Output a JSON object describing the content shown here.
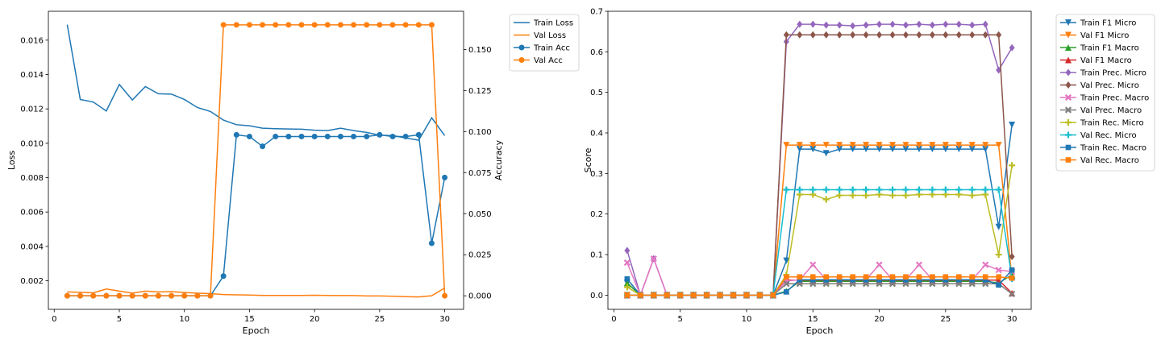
{
  "chart_data": [
    {
      "type": "line",
      "xlabel": "Epoch",
      "ylabel": "Loss",
      "y2label": "Accuracy",
      "xlim": [
        -0.45,
        31.45
      ],
      "ylim": [
        0.000339,
        0.01768
      ],
      "y2lim": [
        -0.00825,
        0.17325
      ],
      "x_ticks": [
        0,
        5,
        10,
        15,
        20,
        25,
        30
      ],
      "y_ticks": [
        0.002,
        0.004,
        0.006,
        0.008,
        0.01,
        0.012,
        0.014,
        0.016
      ],
      "y_tick_labels": [
        "0.002",
        "0.004",
        "0.006",
        "0.008",
        "0.010",
        "0.012",
        "0.014",
        "0.016"
      ],
      "y2_ticks": [
        0,
        0.025,
        0.05,
        0.075,
        0.1,
        0.125,
        0.15
      ],
      "y2_tick_labels": [
        "0.000",
        "0.025",
        "0.050",
        "0.075",
        "0.100",
        "0.125",
        "0.150"
      ],
      "legend_position": "outside-right",
      "series": [
        {
          "name": "Train Loss",
          "axis": "left",
          "color": "#1f77b4",
          "marker": "none",
          "x": [
            1,
            2,
            3,
            4,
            5,
            6,
            7,
            8,
            9,
            10,
            11,
            12,
            13,
            14,
            15,
            16,
            17,
            18,
            19,
            20,
            21,
            22,
            23,
            24,
            25,
            26,
            27,
            28,
            29,
            30
          ],
          "values": [
            0.0169,
            0.01255,
            0.0124,
            0.01188,
            0.01342,
            0.01252,
            0.0133,
            0.01288,
            0.01286,
            0.01255,
            0.01208,
            0.01185,
            0.01135,
            0.01108,
            0.01102,
            0.01088,
            0.01085,
            0.01083,
            0.01082,
            0.01076,
            0.01074,
            0.01088,
            0.01074,
            0.01063,
            0.01047,
            0.01045,
            0.01031,
            0.01018,
            0.01148,
            0.01045
          ]
        },
        {
          "name": "Val Loss",
          "axis": "left",
          "color": "#ff7f0e",
          "marker": "none",
          "x": [
            1,
            2,
            3,
            4,
            5,
            6,
            7,
            8,
            9,
            10,
            11,
            12,
            13,
            14,
            15,
            16,
            17,
            18,
            19,
            20,
            21,
            22,
            23,
            24,
            25,
            26,
            27,
            28,
            29,
            30
          ],
          "values": [
            0.00135,
            0.00133,
            0.0013,
            0.00152,
            0.0014,
            0.00128,
            0.0014,
            0.00135,
            0.00137,
            0.00132,
            0.00128,
            0.00125,
            0.0012,
            0.00118,
            0.00117,
            0.00115,
            0.00115,
            0.00115,
            0.00115,
            0.00116,
            0.00115,
            0.00114,
            0.00114,
            0.00112,
            0.00112,
            0.0011,
            0.00108,
            0.00106,
            0.00113,
            0.00158
          ]
        },
        {
          "name": "Train Acc",
          "axis": "right",
          "color": "#1f77b4",
          "marker": "circle",
          "x": [
            1,
            2,
            3,
            4,
            5,
            6,
            7,
            8,
            9,
            10,
            11,
            12,
            13,
            14,
            15,
            16,
            17,
            18,
            19,
            20,
            21,
            22,
            23,
            24,
            25,
            26,
            27,
            28,
            29,
            30
          ],
          "values": [
            0,
            0,
            0,
            0,
            0,
            0,
            0,
            0,
            0,
            0,
            0,
            0,
            0.012,
            0.098,
            0.097,
            0.091,
            0.097,
            0.097,
            0.097,
            0.097,
            0.097,
            0.097,
            0.097,
            0.097,
            0.098,
            0.097,
            0.097,
            0.098,
            0.032,
            0.072
          ]
        },
        {
          "name": "Val Acc",
          "axis": "right",
          "color": "#ff7f0e",
          "marker": "circle",
          "x": [
            1,
            2,
            3,
            4,
            5,
            6,
            7,
            8,
            9,
            10,
            11,
            12,
            13,
            14,
            15,
            16,
            17,
            18,
            19,
            20,
            21,
            22,
            23,
            24,
            25,
            26,
            27,
            28,
            29,
            30
          ],
          "values": [
            0,
            0,
            0,
            0,
            0,
            0,
            0,
            0,
            0,
            0,
            0,
            0,
            0.165,
            0.165,
            0.165,
            0.165,
            0.165,
            0.165,
            0.165,
            0.165,
            0.165,
            0.165,
            0.165,
            0.165,
            0.165,
            0.165,
            0.165,
            0.165,
            0.165,
            0
          ]
        }
      ]
    },
    {
      "type": "line",
      "xlabel": "Epoch",
      "ylabel": "Score",
      "xlim": [
        -0.45,
        31.45
      ],
      "ylim": [
        -0.035,
        0.7
      ],
      "x_ticks": [
        0,
        5,
        10,
        15,
        20,
        25,
        30
      ],
      "y_ticks": [
        0,
        0.1,
        0.2,
        0.3,
        0.4,
        0.5,
        0.6,
        0.7
      ],
      "y_tick_labels": [
        "0.0",
        "0.1",
        "0.2",
        "0.3",
        "0.4",
        "0.5",
        "0.6",
        "0.7"
      ],
      "legend_position": "outside-right",
      "x": [
        1,
        2,
        3,
        4,
        5,
        6,
        7,
        8,
        9,
        10,
        11,
        12,
        13,
        14,
        15,
        16,
        17,
        18,
        19,
        20,
        21,
        22,
        23,
        24,
        25,
        26,
        27,
        28,
        29,
        30
      ],
      "series": [
        {
          "name": "Train F1 Micro",
          "color": "#1f77b4",
          "marker": "tri-down",
          "values": [
            0.03,
            0,
            0,
            0,
            0,
            0,
            0,
            0,
            0,
            0,
            0,
            0,
            0.085,
            0.36,
            0.36,
            0.35,
            0.36,
            0.36,
            0.36,
            0.36,
            0.36,
            0.36,
            0.36,
            0.36,
            0.36,
            0.36,
            0.36,
            0.36,
            0.168,
            0.42
          ]
        },
        {
          "name": "Val F1 Micro",
          "color": "#ff7f0e",
          "marker": "tri-down",
          "values": [
            0,
            0,
            0,
            0,
            0,
            0,
            0,
            0,
            0,
            0,
            0,
            0,
            0.37,
            0.37,
            0.37,
            0.37,
            0.37,
            0.37,
            0.37,
            0.37,
            0.37,
            0.37,
            0.37,
            0.37,
            0.37,
            0.37,
            0.37,
            0.37,
            0.37,
            0.04
          ]
        },
        {
          "name": "Train F1 Macro",
          "color": "#2ca02c",
          "marker": "tri-up",
          "values": [
            0.03,
            0,
            0,
            0,
            0,
            0,
            0,
            0,
            0,
            0,
            0,
            0,
            0.01,
            0.034,
            0.034,
            0.034,
            0.034,
            0.034,
            0.034,
            0.034,
            0.034,
            0.034,
            0.034,
            0.034,
            0.034,
            0.034,
            0.034,
            0.034,
            0.03,
            0.05
          ]
        },
        {
          "name": "Val F1 Macro",
          "color": "#d62728",
          "marker": "tri-up",
          "values": [
            0,
            0,
            0,
            0,
            0,
            0,
            0,
            0,
            0,
            0,
            0,
            0,
            0.037,
            0.037,
            0.037,
            0.037,
            0.037,
            0.037,
            0.037,
            0.037,
            0.037,
            0.037,
            0.037,
            0.037,
            0.037,
            0.037,
            0.037,
            0.037,
            0.037,
            0.005
          ]
        },
        {
          "name": "Train Prec. Micro",
          "color": "#9467bd",
          "marker": "diamond",
          "values": [
            0.11,
            0,
            0.09,
            0,
            0,
            0,
            0,
            0,
            0,
            0,
            0,
            0,
            0.625,
            0.668,
            0.668,
            0.666,
            0.666,
            0.664,
            0.666,
            0.668,
            0.668,
            0.666,
            0.668,
            0.666,
            0.668,
            0.668,
            0.666,
            0.668,
            0.555,
            0.61
          ]
        },
        {
          "name": "Val Prec. Micro",
          "color": "#8c564b",
          "marker": "diamond",
          "values": [
            0,
            0,
            0,
            0,
            0,
            0,
            0,
            0,
            0,
            0,
            0,
            0,
            0.642,
            0.642,
            0.642,
            0.642,
            0.642,
            0.642,
            0.642,
            0.642,
            0.642,
            0.642,
            0.642,
            0.642,
            0.642,
            0.642,
            0.642,
            0.642,
            0.642,
            0.095
          ]
        },
        {
          "name": "Train Prec. Macro",
          "color": "#e377c2",
          "marker": "x",
          "values": [
            0.08,
            0,
            0.09,
            0,
            0,
            0,
            0,
            0,
            0,
            0,
            0,
            0,
            0.035,
            0.038,
            0.075,
            0.038,
            0.038,
            0.038,
            0.038,
            0.075,
            0.038,
            0.038,
            0.075,
            0.038,
            0.038,
            0.038,
            0.038,
            0.075,
            0.062,
            0.058
          ]
        },
        {
          "name": "Val Prec. Macro",
          "color": "#7f7f7f",
          "marker": "x",
          "values": [
            0,
            0,
            0,
            0,
            0,
            0,
            0,
            0,
            0,
            0,
            0,
            0,
            0.028,
            0.028,
            0.028,
            0.028,
            0.028,
            0.028,
            0.028,
            0.028,
            0.028,
            0.028,
            0.028,
            0.028,
            0.028,
            0.028,
            0.028,
            0.028,
            0.028,
            0.003
          ]
        },
        {
          "name": "Train Rec. Micro",
          "color": "#bcbd22",
          "marker": "plus",
          "values": [
            0.02,
            0,
            0,
            0,
            0,
            0,
            0,
            0,
            0,
            0,
            0,
            0,
            0.05,
            0.248,
            0.248,
            0.236,
            0.246,
            0.246,
            0.246,
            0.248,
            0.246,
            0.246,
            0.248,
            0.248,
            0.248,
            0.248,
            0.246,
            0.248,
            0.1,
            0.32
          ]
        },
        {
          "name": "Val Rec. Micro",
          "color": "#17becf",
          "marker": "plus",
          "values": [
            0,
            0,
            0,
            0,
            0,
            0,
            0,
            0,
            0,
            0,
            0,
            0,
            0.26,
            0.26,
            0.26,
            0.26,
            0.26,
            0.26,
            0.26,
            0.26,
            0.26,
            0.26,
            0.26,
            0.26,
            0.26,
            0.26,
            0.26,
            0.26,
            0.26,
            0.04
          ]
        },
        {
          "name": "Train Rec. Macro",
          "color": "#1f77b4",
          "marker": "square",
          "values": [
            0.04,
            0,
            0,
            0,
            0,
            0,
            0,
            0,
            0,
            0,
            0,
            0,
            0.008,
            0.038,
            0.038,
            0.038,
            0.038,
            0.038,
            0.038,
            0.038,
            0.038,
            0.038,
            0.038,
            0.038,
            0.038,
            0.038,
            0.038,
            0.038,
            0.025,
            0.062
          ]
        },
        {
          "name": "Val Rec. Macro",
          "color": "#ff7f0e",
          "marker": "square",
          "values": [
            0,
            0,
            0,
            0,
            0,
            0,
            0,
            0,
            0,
            0,
            0,
            0,
            0.045,
            0.045,
            0.045,
            0.045,
            0.045,
            0.045,
            0.045,
            0.045,
            0.045,
            0.045,
            0.045,
            0.045,
            0.045,
            0.045,
            0.045,
            0.045,
            0.045,
            0.042
          ]
        }
      ]
    }
  ]
}
